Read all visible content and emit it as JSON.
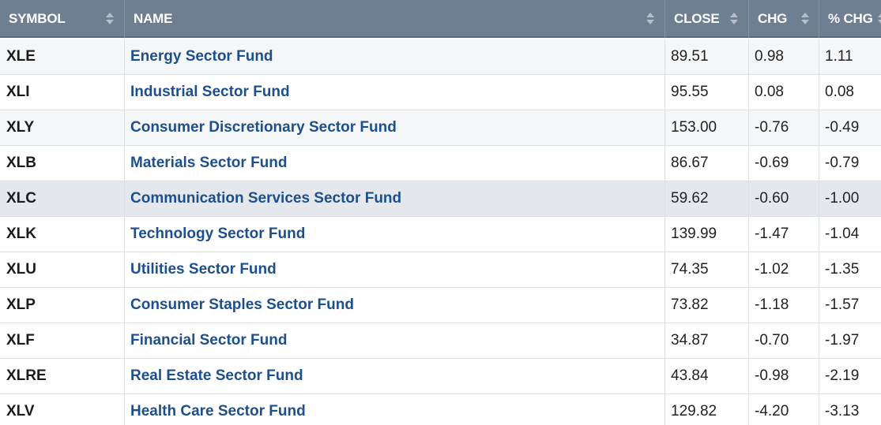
{
  "table": {
    "headers": {
      "symbol": "SYMBOL",
      "name": "NAME",
      "close": "CLOSE",
      "chg": "CHG",
      "pct_chg": "% CHG"
    },
    "rows": [
      {
        "symbol": "XLE",
        "name": "Energy Sector Fund",
        "close": "89.51",
        "chg": "0.98",
        "pct_chg": "1.11"
      },
      {
        "symbol": "XLI",
        "name": "Industrial Sector Fund",
        "close": "95.55",
        "chg": "0.08",
        "pct_chg": "0.08"
      },
      {
        "symbol": "XLY",
        "name": "Consumer Discretionary Sector Fund",
        "close": "153.00",
        "chg": "-0.76",
        "pct_chg": "-0.49"
      },
      {
        "symbol": "XLB",
        "name": "Materials Sector Fund",
        "close": "86.67",
        "chg": "-0.69",
        "pct_chg": "-0.79"
      },
      {
        "symbol": "XLC",
        "name": "Communication Services Sector Fund",
        "close": "59.62",
        "chg": "-0.60",
        "pct_chg": "-1.00"
      },
      {
        "symbol": "XLK",
        "name": "Technology Sector Fund",
        "close": "139.99",
        "chg": "-1.47",
        "pct_chg": "-1.04"
      },
      {
        "symbol": "XLU",
        "name": "Utilities Sector Fund",
        "close": "74.35",
        "chg": "-1.02",
        "pct_chg": "-1.35"
      },
      {
        "symbol": "XLP",
        "name": "Consumer Staples Sector Fund",
        "close": "73.82",
        "chg": "-1.18",
        "pct_chg": "-1.57"
      },
      {
        "symbol": "XLF",
        "name": "Financial Sector Fund",
        "close": "34.87",
        "chg": "-0.70",
        "pct_chg": "-1.97"
      },
      {
        "symbol": "XLRE",
        "name": "Real Estate Sector Fund",
        "close": "43.84",
        "chg": "-0.98",
        "pct_chg": "-2.19"
      },
      {
        "symbol": "XLV",
        "name": "Health Care Sector Fund",
        "close": "129.82",
        "chg": "-4.20",
        "pct_chg": "-3.13"
      }
    ]
  }
}
